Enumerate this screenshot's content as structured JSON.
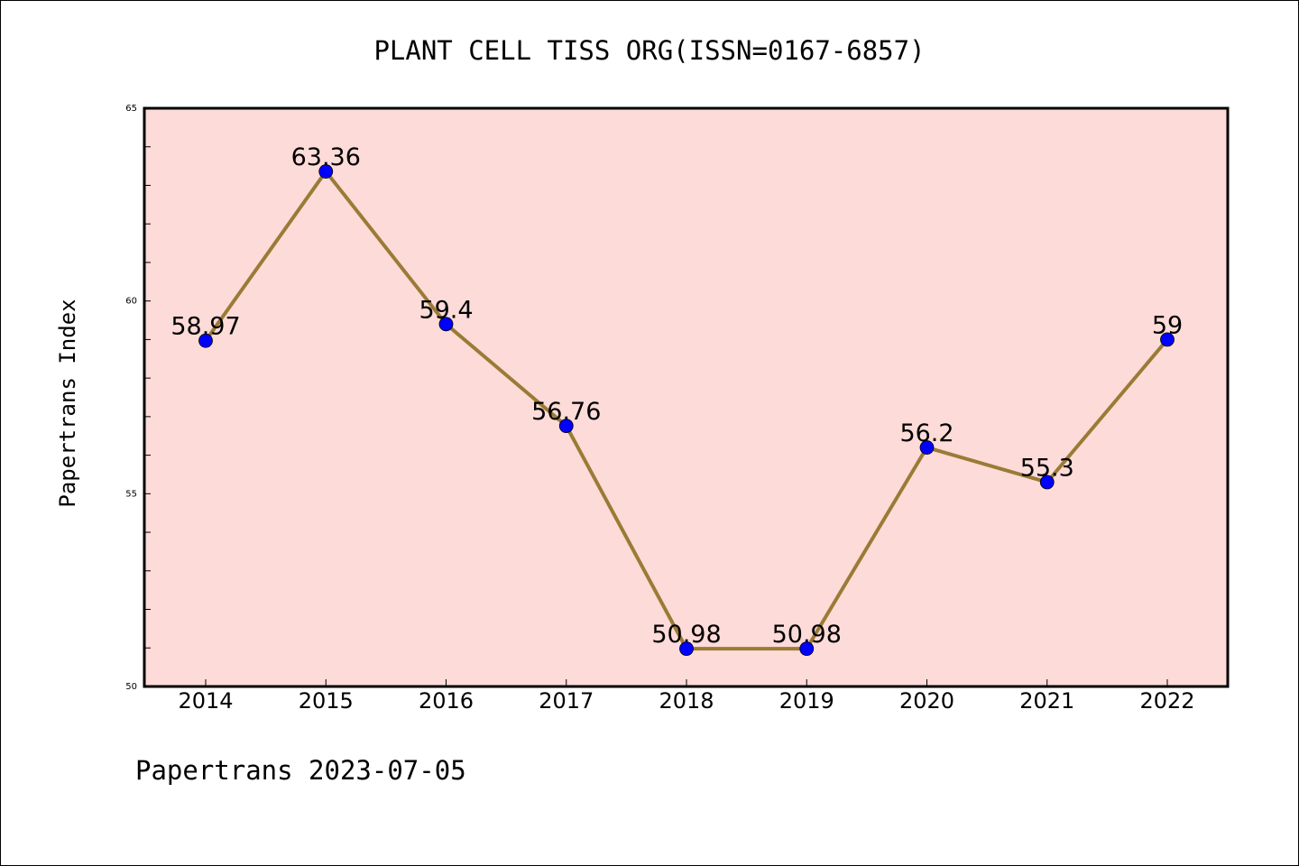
{
  "chart_data": {
    "type": "line",
    "title": "PLANT CELL TISS ORG(ISSN=0167-6857)",
    "xlabel": "",
    "ylabel": "Papertrans Index",
    "categories": [
      "2014",
      "2015",
      "2016",
      "2017",
      "2018",
      "2019",
      "2020",
      "2021",
      "2022"
    ],
    "series": [
      {
        "values": [
          58.97,
          63.36,
          59.4,
          56.76,
          50.98,
          50.98,
          56.2,
          55.3,
          59
        ],
        "labels": [
          "58.97",
          "63.36",
          "59.4",
          "56.76",
          "50.98",
          "50.98",
          "56.2",
          "55.3",
          "59"
        ]
      }
    ],
    "ylim": [
      50,
      65
    ],
    "yticks": [
      "50",
      "55",
      "60",
      "65"
    ],
    "grid": false,
    "legend": "none",
    "footer": "Papertrans 2023-07-05",
    "colors": {
      "plot_background": "#fddbd8",
      "line": "#9a7b36",
      "marker": "#0000ff",
      "axes": "#000000"
    }
  }
}
